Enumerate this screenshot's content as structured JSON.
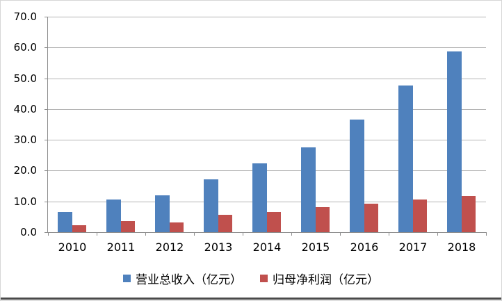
{
  "chart_data": {
    "type": "bar",
    "title": "",
    "categories": [
      "2010",
      "2011",
      "2012",
      "2013",
      "2014",
      "2015",
      "2016",
      "2017",
      "2018"
    ],
    "series": [
      {
        "name": "营业总收入（亿元）",
        "color": "#4F81BD",
        "values": [
          6.5,
          10.5,
          11.9,
          17.2,
          22.4,
          27.6,
          36.5,
          47.7,
          58.8
        ]
      },
      {
        "name": "归母净利润（亿元）",
        "color": "#C0504D",
        "values": [
          2.2,
          3.5,
          3.1,
          5.6,
          6.6,
          8.1,
          9.3,
          10.6,
          11.7
        ]
      }
    ],
    "ylim": [
      0,
      70
    ],
    "ytick_labels": [
      "70.0",
      "60.0",
      "50.0",
      "40.0",
      "30.0",
      "20.0",
      "10.0",
      "0.0"
    ],
    "xlabel": "",
    "ylabel": "",
    "grid": true,
    "legend_position": "bottom",
    "gridline_color": "#b3b3b3",
    "axis_color": "#8c8c8c"
  }
}
